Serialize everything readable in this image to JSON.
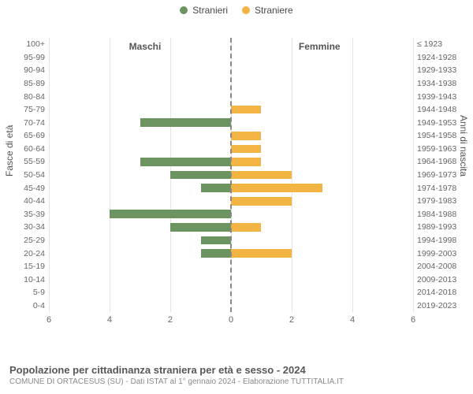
{
  "legend": {
    "male": {
      "label": "Stranieri",
      "color": "#6b9461"
    },
    "female": {
      "label": "Straniere",
      "color": "#f2b543"
    }
  },
  "headers": {
    "left": "Maschi",
    "right": "Femmine"
  },
  "axis_titles": {
    "left": "Fasce di età",
    "right": "Anni di nascita"
  },
  "pyramid": {
    "type": "population-pyramid",
    "xlim": [
      0,
      6
    ],
    "xticks": [
      6,
      4,
      2,
      0,
      2,
      4,
      6
    ],
    "background_color": "#ffffff",
    "grid_color": "#e5e5e5",
    "midline_color": "#888888",
    "midline_dash": true,
    "bar_color_male": "#6b9461",
    "bar_color_female": "#f2b543",
    "label_fontsize": 10.5,
    "label_color": "#666666",
    "header_fontsize": 12,
    "rows": [
      {
        "age": "100+",
        "birth": "≤ 1923",
        "m": 0,
        "f": 0
      },
      {
        "age": "95-99",
        "birth": "1924-1928",
        "m": 0,
        "f": 0
      },
      {
        "age": "90-94",
        "birth": "1929-1933",
        "m": 0,
        "f": 0
      },
      {
        "age": "85-89",
        "birth": "1934-1938",
        "m": 0,
        "f": 0
      },
      {
        "age": "80-84",
        "birth": "1939-1943",
        "m": 0,
        "f": 0
      },
      {
        "age": "75-79",
        "birth": "1944-1948",
        "m": 0,
        "f": 1
      },
      {
        "age": "70-74",
        "birth": "1949-1953",
        "m": 3,
        "f": 0
      },
      {
        "age": "65-69",
        "birth": "1954-1958",
        "m": 0,
        "f": 1
      },
      {
        "age": "60-64",
        "birth": "1959-1963",
        "m": 0,
        "f": 1
      },
      {
        "age": "55-59",
        "birth": "1964-1968",
        "m": 3,
        "f": 1
      },
      {
        "age": "50-54",
        "birth": "1969-1973",
        "m": 2,
        "f": 2
      },
      {
        "age": "45-49",
        "birth": "1974-1978",
        "m": 1,
        "f": 3
      },
      {
        "age": "40-44",
        "birth": "1979-1983",
        "m": 0,
        "f": 2
      },
      {
        "age": "35-39",
        "birth": "1984-1988",
        "m": 4,
        "f": 0
      },
      {
        "age": "30-34",
        "birth": "1989-1993",
        "m": 2,
        "f": 1
      },
      {
        "age": "25-29",
        "birth": "1994-1998",
        "m": 1,
        "f": 0
      },
      {
        "age": "20-24",
        "birth": "1999-2003",
        "m": 1,
        "f": 2
      },
      {
        "age": "15-19",
        "birth": "2004-2008",
        "m": 0,
        "f": 0
      },
      {
        "age": "10-14",
        "birth": "2009-2013",
        "m": 0,
        "f": 0
      },
      {
        "age": "5-9",
        "birth": "2014-2018",
        "m": 0,
        "f": 0
      },
      {
        "age": "0-4",
        "birth": "2019-2023",
        "m": 0,
        "f": 0
      }
    ]
  },
  "x_axis_ticks_l": [
    "6",
    "4",
    "2",
    "0"
  ],
  "x_axis_ticks_r": [
    "2",
    "4",
    "6"
  ],
  "footer": {
    "title": "Popolazione per cittadinanza straniera per età e sesso - 2024",
    "subtitle": "COMUNE DI ORTACESUS (SU) - Dati ISTAT al 1° gennaio 2024 - Elaborazione TUTTITALIA.IT"
  }
}
